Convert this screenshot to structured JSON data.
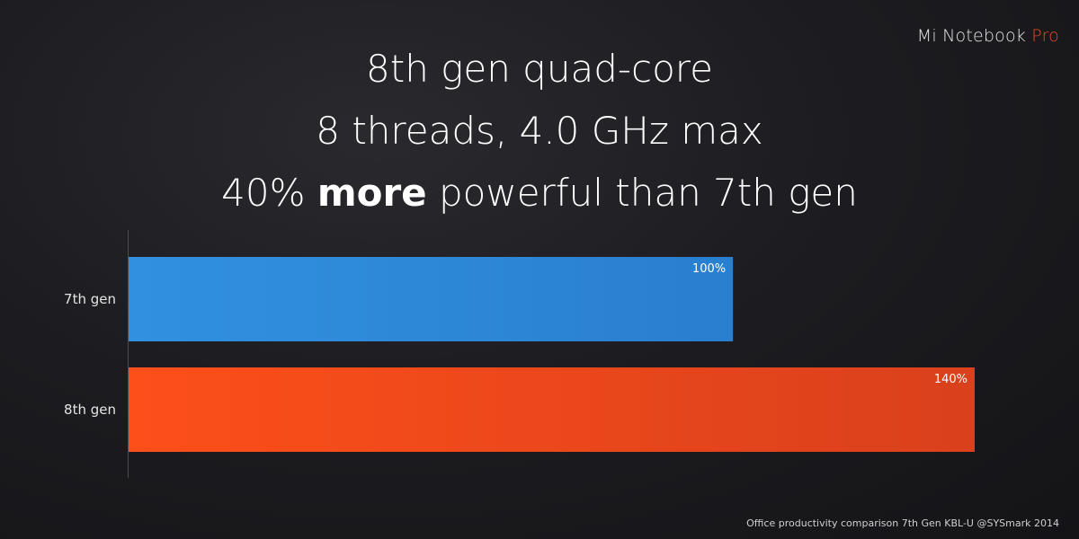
{
  "brand": {
    "name": "Mi Notebook",
    "accent": "Pro",
    "accent_color": "#e8472a"
  },
  "headline": {
    "line1": "8th gen quad-core",
    "line2": "8 threads, 4.0 GHz max",
    "line3_prefix": "40% ",
    "line3_bold": "more",
    "line3_suffix": " powerful than 7th gen"
  },
  "chart_data": {
    "type": "bar",
    "orientation": "horizontal",
    "categories": [
      "7th gen",
      "8th gen"
    ],
    "values": [
      100,
      140
    ],
    "value_labels": [
      "100%",
      "140%"
    ],
    "colors": [
      "#2f86d8",
      "#f04a1e"
    ],
    "xlim": [
      0,
      140
    ],
    "grid": false,
    "title": "",
    "xlabel": "",
    "ylabel": ""
  },
  "footnote": "Office productivity comparison 7th Gen KBL-U @SYSmark 2014"
}
